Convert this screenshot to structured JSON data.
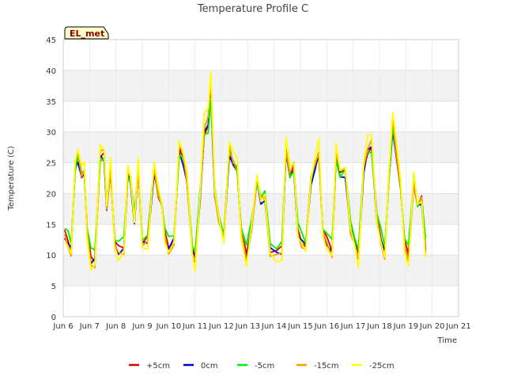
{
  "chart_data": {
    "type": "line",
    "title": "Temperature Profile C",
    "xlabel": "Time",
    "ylabel": "Temperature (C)",
    "site_label": "EL_met",
    "ylim": [
      0,
      45
    ],
    "xlim": [
      6,
      21
    ],
    "yticks": [
      0,
      5,
      10,
      15,
      20,
      25,
      30,
      35,
      40,
      45
    ],
    "xticks": [
      {
        "value": 6,
        "label": "Jun 6"
      },
      {
        "value": 7,
        "label": "Jun 7"
      },
      {
        "value": 8,
        "label": "Jun 8"
      },
      {
        "value": 9,
        "label": "Jun 9"
      },
      {
        "value": 10,
        "label": "Jun 10"
      },
      {
        "value": 11,
        "label": "Jun 11"
      },
      {
        "value": 12,
        "label": "Jun 12"
      },
      {
        "value": 13,
        "label": "Jun 13"
      },
      {
        "value": 14,
        "label": "Jun 14"
      },
      {
        "value": 15,
        "label": "Jun 15"
      },
      {
        "value": 16,
        "label": "Jun 16"
      },
      {
        "value": 17,
        "label": "Jun 17"
      },
      {
        "value": 18,
        "label": "Jun 18"
      },
      {
        "value": 19,
        "label": "Jun 19"
      },
      {
        "value": 20,
        "label": "Jun 20"
      },
      {
        "value": 21,
        "label": "Jun 21"
      }
    ],
    "grid": true,
    "legend_position": "bottom",
    "colors": {
      "+5cm": "#dd0000",
      "0cm": "#0000cc",
      "-5cm": "#00ee00",
      "-15cm": "#ff9900",
      "-25cm": "#ffff00"
    },
    "base_points": [
      [
        6.05,
        13.5
      ],
      [
        6.18,
        12.5
      ],
      [
        6.3,
        11.0
      ],
      [
        6.45,
        24.0
      ],
      [
        6.55,
        26.0
      ],
      [
        6.7,
        23.0
      ],
      [
        6.8,
        23.5
      ],
      [
        6.9,
        14.0
      ],
      [
        7.05,
        9.5
      ],
      [
        7.2,
        9.5
      ],
      [
        7.4,
        26.0
      ],
      [
        7.55,
        26.0
      ],
      [
        7.65,
        18.0
      ],
      [
        7.8,
        24.0
      ],
      [
        7.95,
        12.0
      ],
      [
        8.1,
        11.0
      ],
      [
        8.3,
        11.5
      ],
      [
        8.45,
        23.0
      ],
      [
        8.55,
        22.0
      ],
      [
        8.7,
        16.0
      ],
      [
        8.85,
        24.0
      ],
      [
        9.0,
        12.0
      ],
      [
        9.2,
        12.5
      ],
      [
        9.45,
        24.0
      ],
      [
        9.6,
        20.0
      ],
      [
        9.75,
        18.0
      ],
      [
        9.85,
        13.5
      ],
      [
        10.0,
        11.5
      ],
      [
        10.2,
        12.5
      ],
      [
        10.4,
        27.0
      ],
      [
        10.55,
        25.5
      ],
      [
        10.7,
        22.0
      ],
      [
        10.9,
        11.0
      ],
      [
        11.0,
        9.5
      ],
      [
        11.2,
        20.0
      ],
      [
        11.35,
        30.0
      ],
      [
        11.5,
        31.0
      ],
      [
        11.6,
        36.5
      ],
      [
        11.75,
        20.0
      ],
      [
        11.9,
        16.0
      ],
      [
        12.1,
        13.0
      ],
      [
        12.3,
        27.0
      ],
      [
        12.45,
        25.0
      ],
      [
        12.6,
        24.0
      ],
      [
        12.75,
        14.0
      ],
      [
        12.95,
        10.0
      ],
      [
        13.15,
        15.0
      ],
      [
        13.35,
        22.0
      ],
      [
        13.5,
        19.0
      ],
      [
        13.65,
        19.5
      ],
      [
        13.85,
        11.0
      ],
      [
        14.1,
        10.5
      ],
      [
        14.3,
        11.0
      ],
      [
        14.45,
        27.0
      ],
      [
        14.6,
        23.0
      ],
      [
        14.75,
        24.0
      ],
      [
        14.9,
        14.0
      ],
      [
        15.05,
        12.5
      ],
      [
        15.2,
        11.5
      ],
      [
        15.4,
        22.0
      ],
      [
        15.55,
        24.5
      ],
      [
        15.7,
        26.5
      ],
      [
        15.85,
        14.0
      ],
      [
        16.0,
        12.5
      ],
      [
        16.2,
        11.0
      ],
      [
        16.35,
        26.0
      ],
      [
        16.5,
        23.0
      ],
      [
        16.7,
        23.5
      ],
      [
        16.9,
        14.5
      ],
      [
        17.05,
        12.5
      ],
      [
        17.2,
        10.0
      ],
      [
        17.4,
        24.0
      ],
      [
        17.55,
        27.0
      ],
      [
        17.7,
        27.5
      ],
      [
        17.9,
        16.0
      ],
      [
        18.05,
        13.0
      ],
      [
        18.2,
        10.5
      ],
      [
        18.35,
        22.0
      ],
      [
        18.5,
        31.0
      ],
      [
        18.65,
        26.0
      ],
      [
        18.8,
        21.0
      ],
      [
        18.95,
        12.0
      ],
      [
        19.1,
        10.0
      ],
      [
        19.3,
        22.0
      ],
      [
        19.45,
        18.0
      ],
      [
        19.6,
        19.0
      ],
      [
        19.75,
        11.0
      ]
    ],
    "series": [
      {
        "name": "+5cm",
        "amp": 1.0,
        "offset": 0.0
      },
      {
        "name": "0cm",
        "amp": 1.0,
        "offset": -0.3
      },
      {
        "name": "-5cm",
        "amp": 0.92,
        "offset": 0.5
      },
      {
        "name": "-15cm",
        "amp": 1.1,
        "offset": -0.2
      },
      {
        "name": "-25cm",
        "amp": 1.2,
        "offset": 0.0
      }
    ]
  }
}
